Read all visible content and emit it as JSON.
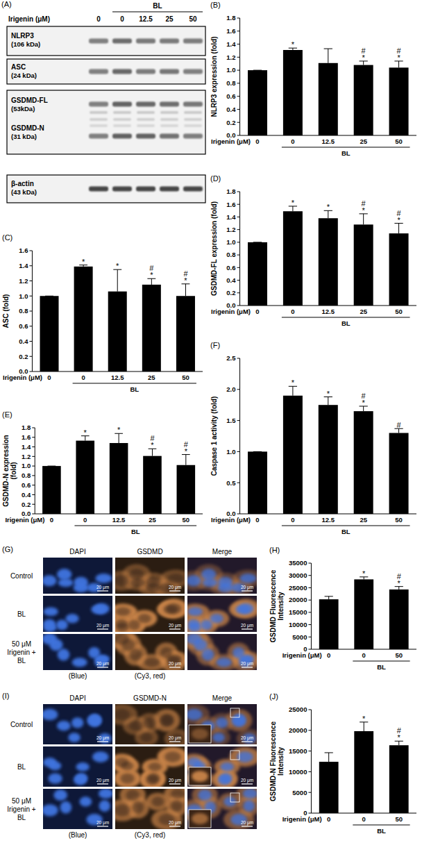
{
  "chart_data": [
    {
      "type": "bar",
      "panel": "(B)",
      "y_label": "NLRP3 expression (fold)",
      "x_label": "Irigenin (μM)",
      "categories": [
        "0",
        "0",
        "12.5",
        "25",
        "50"
      ],
      "values": [
        1.0,
        1.31,
        1.11,
        1.08,
        1.04
      ],
      "errors": [
        0,
        0.03,
        0.22,
        0.06,
        0.1
      ],
      "annotations": [
        null,
        [
          "*"
        ],
        null,
        [
          "#",
          "*"
        ],
        [
          "#",
          "*"
        ]
      ],
      "group_label": "BL",
      "in_group": [
        false,
        true,
        true,
        true,
        true
      ],
      "color": "#000000",
      "ylim": [
        0,
        1.8
      ],
      "yticks": [
        {
          "value": 0,
          "label": "0.0"
        },
        0.2,
        0.4,
        0.6,
        0.8,
        {
          "value": 1,
          "label": "1.0"
        },
        1.2,
        1.4,
        1.6,
        1.8
      ]
    },
    {
      "type": "bar",
      "panel": "(C)",
      "y_label": "ASC (fold)",
      "x_label": "Irigenin (μM)",
      "categories": [
        "0",
        "0",
        "12.5",
        "25",
        "50"
      ],
      "values": [
        1.0,
        1.39,
        1.06,
        1.15,
        1.0
      ],
      "errors": [
        0,
        0.02,
        0.29,
        0.08,
        0.16
      ],
      "annotations": [
        null,
        [
          "*"
        ],
        [
          "*"
        ],
        [
          "#",
          "*"
        ],
        [
          "#",
          "*"
        ]
      ],
      "group_label": "BL",
      "in_group": [
        false,
        true,
        true,
        true,
        true
      ],
      "color": "#000000",
      "ylim": [
        0,
        1.6
      ],
      "yticks": [
        {
          "value": 0,
          "label": "0.0"
        },
        0.2,
        0.4,
        0.6,
        0.8,
        {
          "value": 1,
          "label": "1.0"
        },
        1.2,
        1.4,
        1.6
      ]
    },
    {
      "type": "bar",
      "panel": "(D)",
      "y_label": "GSDMD-FL expression (fold)",
      "x_label": "Irigenin (μM)",
      "categories": [
        "0",
        "0",
        "12.5",
        "25",
        "50"
      ],
      "values": [
        1.0,
        1.49,
        1.38,
        1.28,
        1.14
      ],
      "errors": [
        0,
        0.08,
        0.12,
        0.17,
        0.16
      ],
      "annotations": [
        null,
        [
          "*"
        ],
        [
          "*"
        ],
        [
          "#",
          "*"
        ],
        [
          "#",
          "*"
        ]
      ],
      "group_label": "BL",
      "in_group": [
        false,
        true,
        true,
        true,
        true
      ],
      "color": "#000000",
      "ylim": [
        0,
        1.8
      ],
      "yticks": [
        {
          "value": 0,
          "label": "0.0"
        },
        0.2,
        0.4,
        0.6,
        0.8,
        {
          "value": 1,
          "label": "1.0"
        },
        1.2,
        1.4,
        1.6,
        1.8
      ]
    },
    {
      "type": "bar",
      "panel": "(E)",
      "y_label": "GSDMD-N expression (fold)",
      "x_label": "Irigenin (μM)",
      "categories": [
        "0",
        "0",
        "12.5",
        "25",
        "50"
      ],
      "values": [
        1.0,
        1.53,
        1.48,
        1.21,
        1.02
      ],
      "errors": [
        0,
        0.1,
        0.2,
        0.15,
        0.22
      ],
      "annotations": [
        null,
        [
          "*"
        ],
        [
          "*"
        ],
        [
          "#",
          "*"
        ],
        [
          "#",
          "*"
        ]
      ],
      "group_label": "BL",
      "in_group": [
        false,
        true,
        true,
        true,
        true
      ],
      "color": "#000000",
      "ylim": [
        0,
        1.8
      ],
      "yticks": [
        {
          "value": 0,
          "label": "0.0"
        },
        0.2,
        0.4,
        0.6,
        0.8,
        {
          "value": 1,
          "label": "1.0"
        },
        1.2,
        1.4,
        1.6,
        1.8
      ]
    },
    {
      "type": "bar",
      "panel": "(F)",
      "y_label": "Caspase 1 activity (fold)",
      "x_label": "Irigenin (μM)",
      "categories": [
        "0",
        "0",
        "12.5",
        "25",
        "50"
      ],
      "values": [
        1.0,
        1.9,
        1.75,
        1.65,
        1.3
      ],
      "errors": [
        0,
        0.15,
        0.13,
        0.08,
        0.07
      ],
      "annotations": [
        null,
        [
          "*"
        ],
        [
          "*"
        ],
        [
          "#",
          "*"
        ],
        [
          "#"
        ]
      ],
      "group_label": "BL",
      "in_group": [
        false,
        true,
        true,
        true,
        true
      ],
      "color": "#000000",
      "ylim": [
        0,
        2.5
      ],
      "yticks": [
        {
          "value": 0,
          "label": "0.0"
        },
        0.5,
        {
          "value": 1,
          "label": "1.0"
        },
        1.5,
        {
          "value": 2,
          "label": "2.0"
        },
        2.5
      ]
    },
    {
      "type": "bar",
      "panel": "(H)",
      "y_label": "GSDMD Fluorescence Intensity",
      "x_label": "Irigenin (μM)",
      "categories": [
        "0",
        "0",
        "50"
      ],
      "values": [
        20300,
        28400,
        24300
      ],
      "errors": [
        1200,
        1000,
        1200
      ],
      "annotations": [
        null,
        [
          "*"
        ],
        [
          "#",
          "*"
        ]
      ],
      "group_label": "BL",
      "in_group": [
        false,
        true,
        true
      ],
      "color": "#000000",
      "ylim": [
        0,
        35000
      ],
      "yticks": [
        0,
        5000,
        10000,
        15000,
        20000,
        25000,
        30000,
        35000
      ]
    },
    {
      "type": "bar",
      "panel": "(J)",
      "y_label": "GSDMD-N Fluorescence Intensity",
      "x_label": "Irigenin (μM)",
      "categories": [
        "0",
        "0",
        "50"
      ],
      "values": [
        12400,
        19800,
        16400
      ],
      "errors": [
        2200,
        2200,
        1000
      ],
      "annotations": [
        null,
        [
          "*"
        ],
        [
          "#",
          "*"
        ]
      ],
      "group_label": "BL",
      "in_group": [
        false,
        true,
        true
      ],
      "color": "#000000",
      "ylim": [
        0,
        25000
      ],
      "yticks": [
        0,
        5000,
        10000,
        15000,
        20000,
        25000
      ]
    }
  ],
  "blot": {
    "panel": "(A)",
    "x_label": "Irigenin (μM)",
    "lanes": [
      "0",
      "0",
      "12.5",
      "25",
      "50"
    ],
    "group_label": "BL",
    "in_group": [
      false,
      true,
      true,
      true,
      true
    ],
    "rows": [
      {
        "name": "NLRP3",
        "size": "(106 kDa)"
      },
      {
        "name": "ASC",
        "size": "(24 kDa)"
      },
      {
        "name": "GSDMD-FL",
        "size": "(53kDa)"
      },
      {
        "name": "GSDMD-N",
        "size": "(31 kDa)"
      },
      {
        "name": "β-actin",
        "size": "(43 kDa)"
      }
    ]
  },
  "images": [
    {
      "panel": "(G)",
      "columns": [
        "DAPI",
        "GSDMD",
        "Merge"
      ],
      "rows": [
        "Control",
        "BL",
        "50 μM Irigenin + BL"
      ],
      "scale_bar": "20 μm",
      "channels": [
        "(Blue)",
        "(Cy3, red)"
      ]
    },
    {
      "panel": "(I)",
      "columns": [
        "DAPI",
        "GSDMD-N",
        "Merge"
      ],
      "rows": [
        "Control",
        "BL",
        "50 μM Irigenin + BL"
      ],
      "scale_bar": "20 μm",
      "channels": [
        "(Blue)",
        "(Cy3, red)"
      ]
    }
  ]
}
